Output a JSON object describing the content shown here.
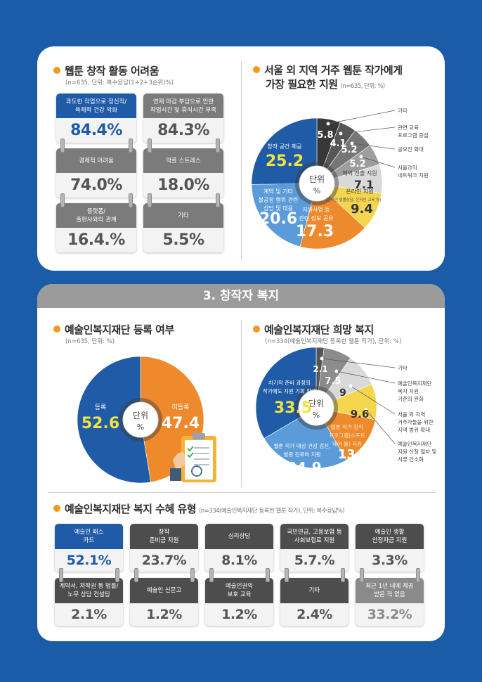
{
  "difficulties": {
    "title": "웹툰 창작 활동 어려움",
    "subtitle": "(n=635, 단위: 복수응답(1+2+3순위)%)",
    "cards": [
      {
        "label": "과도한 작업으로 정신적/\n육체적 건강 악화",
        "value": "84.4%",
        "highlight": true
      },
      {
        "label": "연재 마감 부담으로 인한\n작업시간 및 휴식시간 부족",
        "value": "84.3%"
      },
      {
        "label": "경제적 어려움",
        "value": "74.0%"
      },
      {
        "label": "악플 스트레스",
        "value": "18.0%"
      },
      {
        "label": "플랫폼/\n출판사와의 관계",
        "value": "16.4.%"
      },
      {
        "label": "기타",
        "value": "5.5%"
      }
    ]
  },
  "regional_support": {
    "title_line1": "서울 외 지역 거주 웹툰 작가에게",
    "title_line2": "가장 필요한 지원",
    "subtitle": "(n=635, 단위: %)"
  },
  "section": {
    "title": "3. 창작자 복지"
  },
  "registration": {
    "title": "예술인복지재단 등록 여부",
    "subtitle": "(n=635, 단위: %)"
  },
  "desired_welfare": {
    "title": "예술인복지재단 희망 복지",
    "subtitle": "(n=334(예술인복지재단 등록한 웹툰 작가), 단위: %)"
  },
  "pie_center": {
    "line1": "단위",
    "line2": "%"
  },
  "benefits": {
    "title": "예술인복지재단 복지 수혜 유형",
    "subtitle": "(n=334(예술인복지재단 등록한 웹툰 작가), 단위: 복수응답%)",
    "cards": [
      {
        "label": "예술인 패스\n카드",
        "value": "52.1%",
        "highlight": true
      },
      {
        "label": "창작\n준비금 지원",
        "value": "23.7%"
      },
      {
        "label": "심리상담",
        "value": "8.1%"
      },
      {
        "label": "국민연금, 고용보험 등\n사회보험료 지원",
        "value": "5.7.%"
      },
      {
        "label": "예술인 생활\n안정자금 지원",
        "value": "3.3%"
      },
      {
        "label": "계약서, 저작권 등 법률/\n노무 상담 컨설팅",
        "value": "2.1%"
      },
      {
        "label": "예술인 신문고",
        "value": "1.2%"
      },
      {
        "label": "예술인권익\n보호 교육",
        "value": "1.2%"
      },
      {
        "label": "기타",
        "value": "2.4%"
      },
      {
        "label": "최근 1년 내에 제공\n받은 적 없음",
        "value": "33.2%",
        "muted": true
      }
    ]
  },
  "chart_data": [
    {
      "type": "pie",
      "title": "서울 외 지역 거주 웹툰 작가에게 가장 필요한 지원",
      "unit": "%",
      "direction": "clockwise from top",
      "slices": [
        {
          "label": "기타",
          "value": 5.8,
          "color": "#383838"
        },
        {
          "label": "관련 교육\n프로그램 증설",
          "value": 4.1,
          "color": "#565656"
        },
        {
          "label": "공모전 확대",
          "value": 5.2,
          "color": "#767676"
        },
        {
          "label": "서울과의\n네트워크 지원",
          "value": 5.2,
          "color": "#9d9d9d"
        },
        {
          "label": "해외 진출 지원",
          "value": 7.1,
          "color": "#d9d9d9"
        },
        {
          "label": "온라인 지원",
          "sublabel": "(온라인 법률상담, 온라인 교육 등)",
          "value": 9.4,
          "color": "#f3d54e"
        },
        {
          "label": "지원사업 등\n관련 정보 공유",
          "value": 17.3,
          "color": "#ee8a2c"
        },
        {
          "label": "계약 및 기타\n불공정 행위 관련\n상담 및 대응",
          "value": 20.6,
          "color": "#5b9bd9"
        },
        {
          "label": "창작 공간 제공",
          "value": 25.2,
          "color": "#1f5ba6"
        }
      ]
    },
    {
      "type": "pie",
      "title": "예술인복지재단 등록 여부",
      "unit": "%",
      "direction": "clockwise from top",
      "slices": [
        {
          "label": "미등록",
          "value": 47.4,
          "color": "#ee8a2c"
        },
        {
          "label": "등록",
          "value": 52.6,
          "color": "#1f5ba6"
        }
      ]
    },
    {
      "type": "pie",
      "title": "예술인복지재단 희망 복지",
      "unit": "%",
      "direction": "clockwise from top",
      "slices": [
        {
          "label": "기타",
          "value": 2.1,
          "color": "#555555"
        },
        {
          "label": "예술인복지재단\n복지 지원\n기준의 완화",
          "value": 7.5,
          "color": "#8c8c8c"
        },
        {
          "label": "서울 외 지역\n거주자들을 위한\n지역 범위 확대",
          "value": 9.0,
          "color": "#d9d9d9"
        },
        {
          "label": "예술인복지재단\n지원 신청 절차 및\n서류 간소화",
          "value": 9.6,
          "color": "#f3d54e"
        },
        {
          "label": "웹툰 작가 창작\n프로그램(소프트\n웨어 툴) 지원",
          "value": 13.5,
          "color": "#ee8a2c"
        },
        {
          "label": "웹툰 작가 대상 건강 검진,\n병원 진료비 지원",
          "value": 24.9,
          "color": "#5b9bd9"
        },
        {
          "label": "차기작 준비 과정의\n작가에도 지원 기회 확대",
          "value": 33.5,
          "color": "#1f5ba6"
        }
      ]
    }
  ]
}
